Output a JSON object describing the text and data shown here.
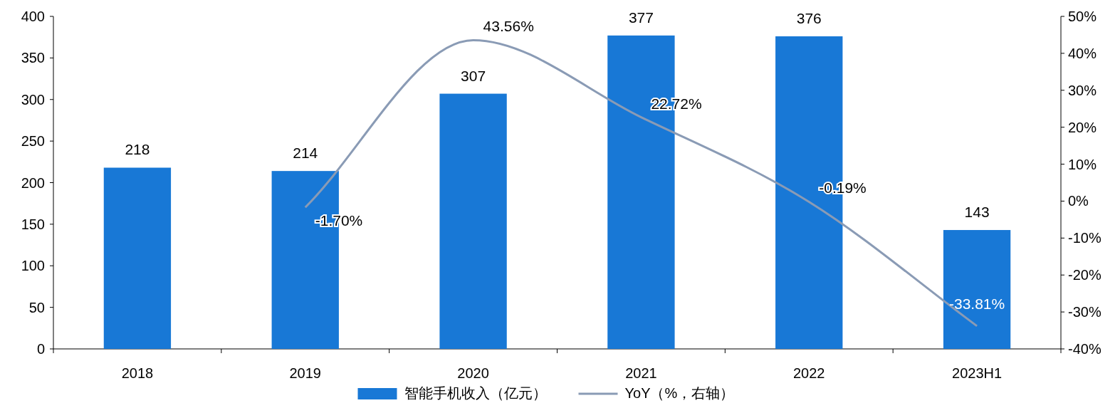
{
  "chart_data": {
    "type": "bar",
    "categories": [
      "2018",
      "2019",
      "2020",
      "2021",
      "2022",
      "2023H1"
    ],
    "ylim": [
      0,
      400
    ],
    "yticks": [
      0,
      50,
      100,
      150,
      200,
      250,
      300,
      350,
      400
    ],
    "y2lim": [
      -40,
      50
    ],
    "y2ticks": [
      {
        "value": -40,
        "label": "-40%"
      },
      {
        "value": -30,
        "label": "-30%"
      },
      {
        "value": -20,
        "label": "-20%"
      },
      {
        "value": -10,
        "label": "-10%"
      },
      {
        "value": 0,
        "label": "0%"
      },
      {
        "value": 10,
        "label": "10%"
      },
      {
        "value": 20,
        "label": "20%"
      },
      {
        "value": 30,
        "label": "30%"
      },
      {
        "value": 40,
        "label": "40%"
      },
      {
        "value": 50,
        "label": "50%"
      }
    ],
    "legend": "bottom",
    "grid": false,
    "series": [
      {
        "name": "智能手机收入（亿元）",
        "color": "#1878d6",
        "values": [
          218,
          214,
          307,
          377,
          376,
          143
        ],
        "value_labels": [
          "218",
          "214",
          "307",
          "377",
          "376",
          "143"
        ]
      },
      {
        "name": "YoY（%，右轴）",
        "type": "line",
        "axis": "y2",
        "color": "#8a9bb5",
        "values": [
          null,
          -1.7,
          43.56,
          22.72,
          -0.19,
          -33.81
        ],
        "value_labels": [
          null,
          "-1.70%",
          "43.56%",
          "22.72%",
          "-0.19%",
          "-33.81%"
        ]
      }
    ]
  }
}
